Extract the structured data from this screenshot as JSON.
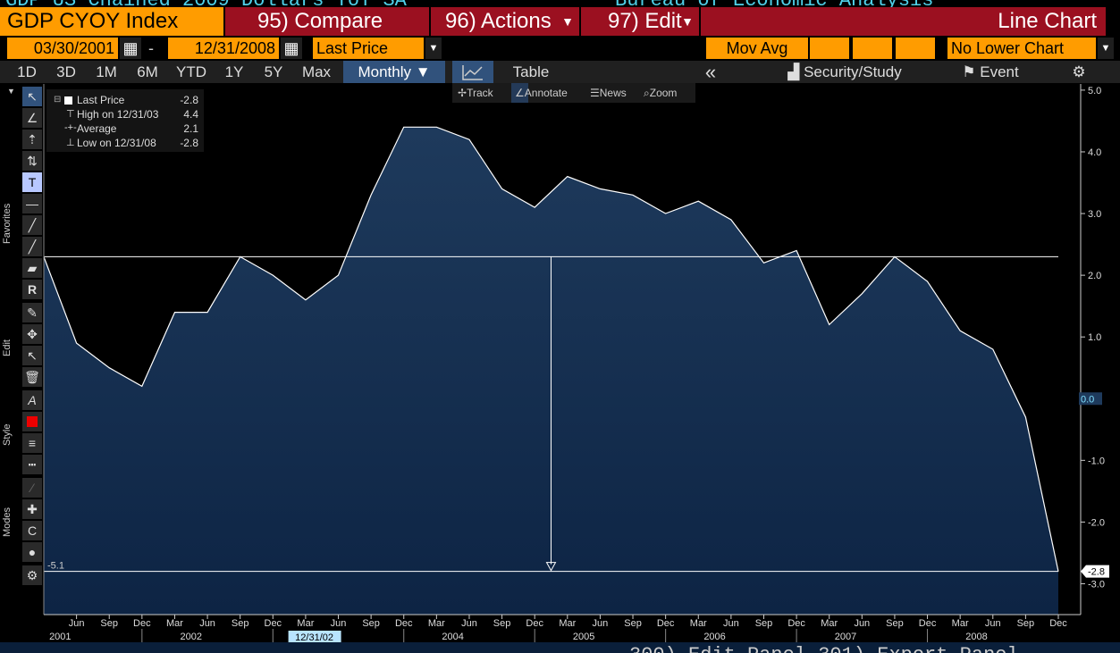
{
  "header": {
    "title_partial": "GDP US Chained 2009 Dollars YoY SA",
    "source_partial": "Bureau of Economic Analysis",
    "ticker": "GDP CYOY Index",
    "compare": "95) Compare",
    "actions": "96) Actions",
    "edit": "97) Edit",
    "chart_type": "Line Chart"
  },
  "controls": {
    "start_date": "03/30/2001",
    "dash": "-",
    "end_date": "12/31/2008",
    "price_field": "Last Price",
    "mov_avg": "Mov Avg",
    "lower_chart": "No Lower Chart"
  },
  "periods": {
    "items": [
      "1D",
      "3D",
      "1M",
      "6M",
      "YTD",
      "1Y",
      "5Y",
      "Max"
    ],
    "frequency": "Monthly ▼",
    "table": "Table",
    "collapse": "«",
    "security_study": "Security/Study",
    "event": "Event"
  },
  "chart_tools": {
    "track": "Track",
    "annotate": "Annotate",
    "news": "News",
    "zoom": "Zoom"
  },
  "sidebar": {
    "favorites": "Favorites",
    "edit": "Edit",
    "style": "Style",
    "modes": "Modes"
  },
  "legend": {
    "last_label": "Last Price",
    "last_value": "-2.8",
    "high_label": "High on 12/31/03",
    "high_value": "4.4",
    "avg_label": "Average",
    "avg_value": "2.1",
    "low_label": "Low on 12/31/08",
    "low_value": "-2.8"
  },
  "bottom_partial": "300) Edit Panel  301) Export Panel",
  "colors": {
    "orange": "#ff9c00",
    "red": "#9b1020",
    "fill_top": "#1e3a5c",
    "fill_bottom": "#0d2444",
    "line": "#ffffff"
  },
  "chart_data": {
    "type": "area",
    "x": [
      "Mar 2001",
      "Jun 2001",
      "Sep 2001",
      "Dec 2001",
      "Mar 2002",
      "Jun 2002",
      "Sep 2002",
      "Dec 2002",
      "Mar 2003",
      "Jun 2003",
      "Sep 2003",
      "Dec 2003",
      "Mar 2004",
      "Jun 2004",
      "Sep 2004",
      "Dec 2004",
      "Mar 2005",
      "Jun 2005",
      "Sep 2005",
      "Dec 2005",
      "Mar 2006",
      "Jun 2006",
      "Sep 2006",
      "Dec 2006",
      "Mar 2007",
      "Jun 2007",
      "Sep 2007",
      "Dec 2007",
      "Mar 2008",
      "Jun 2008",
      "Sep 2008",
      "Dec 2008"
    ],
    "values": [
      2.3,
      0.9,
      0.5,
      0.2,
      1.4,
      1.4,
      2.3,
      2.0,
      1.6,
      2.0,
      3.3,
      4.4,
      4.4,
      4.2,
      3.4,
      3.1,
      3.6,
      3.4,
      3.3,
      3.0,
      3.2,
      2.9,
      2.2,
      2.4,
      1.2,
      1.7,
      2.3,
      1.9,
      1.1,
      0.8,
      -0.3,
      -2.8
    ],
    "ylim": [
      -3.5,
      5.1
    ],
    "y_ticks": [
      "5.0",
      "4.0",
      "3.0",
      "2.0",
      "1.0",
      "0.0",
      "-1.0",
      "-2.0",
      "-3.0"
    ],
    "y_tick_values": [
      5.0,
      4.0,
      3.0,
      2.0,
      1.0,
      0.0,
      -1.0,
      -2.0,
      -3.0
    ],
    "x_month_labels": [
      "Jun",
      "Sep",
      "Dec",
      "Mar",
      "Jun",
      "Sep",
      "Dec",
      "Mar",
      "Jun",
      "Sep",
      "Dec",
      "Mar",
      "Jun",
      "Sep",
      "Dec",
      "Mar",
      "Jun",
      "Sep",
      "Dec",
      "Mar",
      "Jun",
      "Sep",
      "Dec",
      "Mar",
      "Jun",
      "Sep",
      "Dec",
      "Mar",
      "Jun",
      "Sep",
      "Dec"
    ],
    "x_years": [
      "2001",
      "2002",
      "2003",
      "2004",
      "2005",
      "2006",
      "2007",
      "2008"
    ],
    "year_label_index": [
      0.5,
      4.5,
      8.5,
      12.5,
      16.5,
      20.5,
      24.5,
      28.5
    ],
    "last_value_label": "-2.8",
    "zero_marker_label": "0.0",
    "annotation_level": 2.3,
    "annotation_low": -2.8,
    "annotation_low_label": "-5.1",
    "annotation_date_label": "12/31/02",
    "annotation_index": 15.5,
    "grid": false
  }
}
